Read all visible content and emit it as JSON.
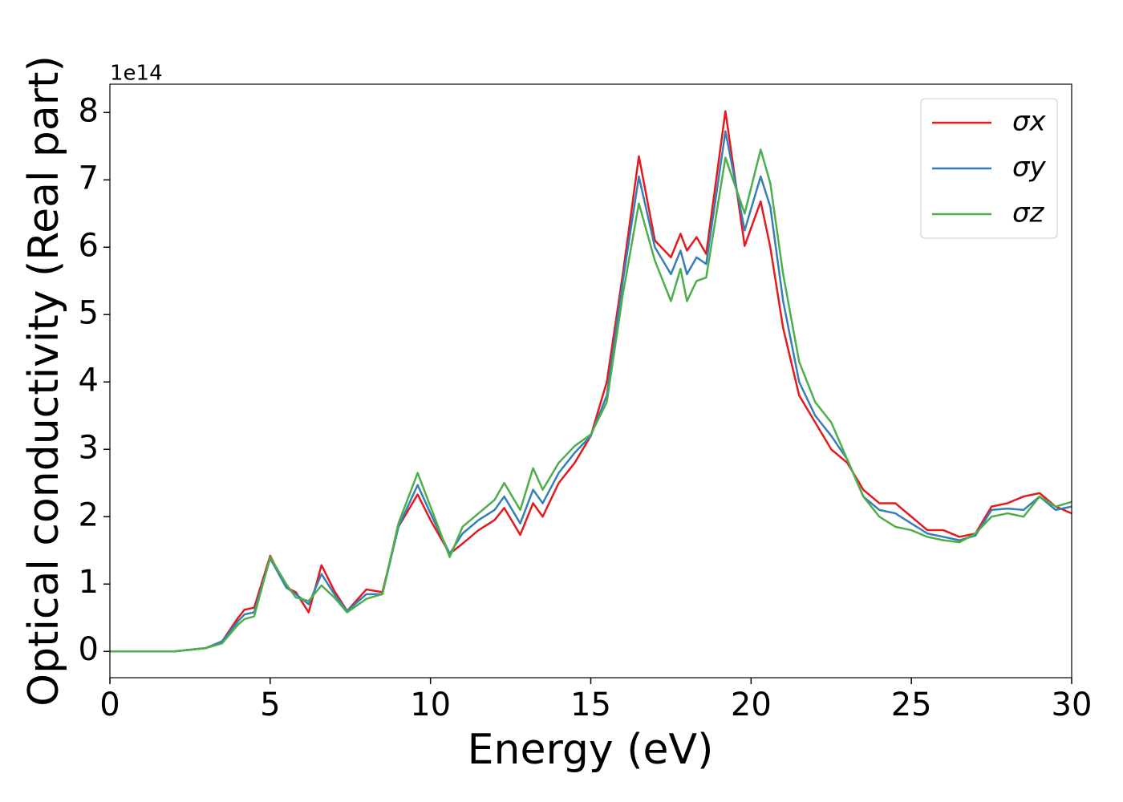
{
  "chart_data": {
    "type": "line",
    "xlabel": "Energy (eV)",
    "ylabel": "Optical conductivity (Real part)",
    "offset_label": "1e14",
    "x": [
      0,
      1,
      2,
      3,
      3.5,
      4,
      4.2,
      4.5,
      5,
      5.5,
      5.8,
      6.2,
      6.6,
      7,
      7.4,
      8,
      8.5,
      9,
      9.6,
      10,
      10.6,
      11,
      11.5,
      12,
      12.3,
      12.8,
      13.2,
      13.5,
      14,
      14.5,
      15,
      15.5,
      16,
      16.5,
      17,
      17.5,
      17.8,
      18,
      18.3,
      18.6,
      19.2,
      19.8,
      20.3,
      20.6,
      21,
      21.5,
      22,
      22.5,
      23,
      23.5,
      24,
      24.5,
      25,
      25.5,
      26,
      26.5,
      27,
      27.5,
      28,
      28.5,
      29,
      29.5,
      30
    ],
    "series": [
      {
        "name": "σx",
        "color": "#e41a1c",
        "values": [
          0,
          0,
          0,
          0.05,
          0.15,
          0.5,
          0.62,
          0.65,
          1.42,
          0.95,
          0.88,
          0.58,
          1.28,
          0.9,
          0.6,
          0.92,
          0.88,
          1.85,
          2.33,
          1.95,
          1.45,
          1.6,
          1.8,
          1.95,
          2.13,
          1.73,
          2.2,
          2.0,
          2.5,
          2.8,
          3.2,
          4.0,
          5.6,
          7.35,
          6.1,
          5.85,
          6.2,
          5.95,
          6.15,
          5.9,
          8.02,
          6.02,
          6.68,
          6.0,
          4.8,
          3.8,
          3.4,
          3.0,
          2.8,
          2.4,
          2.2,
          2.2,
          2.0,
          1.8,
          1.8,
          1.7,
          1.75,
          2.15,
          2.2,
          2.3,
          2.35,
          2.15,
          2.05
        ]
      },
      {
        "name": "σy",
        "color": "#377eb8",
        "values": [
          0,
          0,
          0,
          0.05,
          0.15,
          0.45,
          0.55,
          0.58,
          1.38,
          0.95,
          0.85,
          0.7,
          1.15,
          0.85,
          0.6,
          0.85,
          0.85,
          1.85,
          2.47,
          2.05,
          1.45,
          1.75,
          1.95,
          2.1,
          2.3,
          1.9,
          2.4,
          2.2,
          2.65,
          2.95,
          3.2,
          3.8,
          5.5,
          7.05,
          6.0,
          5.6,
          5.95,
          5.6,
          5.85,
          5.75,
          7.72,
          6.25,
          7.05,
          6.6,
          5.2,
          4.0,
          3.5,
          3.2,
          2.85,
          2.3,
          2.1,
          2.05,
          1.9,
          1.75,
          1.7,
          1.65,
          1.72,
          2.1,
          2.12,
          2.1,
          2.3,
          2.1,
          2.15
        ]
      },
      {
        "name": "σz",
        "color": "#4daf4a",
        "values": [
          0,
          0,
          0,
          0.05,
          0.12,
          0.4,
          0.48,
          0.52,
          1.4,
          1.0,
          0.8,
          0.75,
          0.98,
          0.8,
          0.58,
          0.78,
          0.85,
          1.9,
          2.65,
          2.15,
          1.4,
          1.85,
          2.05,
          2.25,
          2.5,
          2.1,
          2.72,
          2.4,
          2.8,
          3.05,
          3.22,
          3.7,
          5.3,
          6.65,
          5.8,
          5.2,
          5.68,
          5.2,
          5.5,
          5.55,
          7.33,
          6.5,
          7.45,
          6.95,
          5.6,
          4.3,
          3.7,
          3.4,
          2.85,
          2.3,
          2.0,
          1.85,
          1.8,
          1.7,
          1.65,
          1.62,
          1.75,
          2.0,
          2.05,
          2.0,
          2.3,
          2.15,
          2.22
        ]
      }
    ],
    "xlim": [
      0,
      30
    ],
    "xticks": [
      0,
      5,
      10,
      15,
      20,
      25,
      30
    ],
    "ylim": [
      -0.39,
      8.42
    ],
    "yticks": [
      0,
      1,
      2,
      3,
      4,
      5,
      6,
      7,
      8
    ],
    "grid": false,
    "legend": "upper right"
  }
}
